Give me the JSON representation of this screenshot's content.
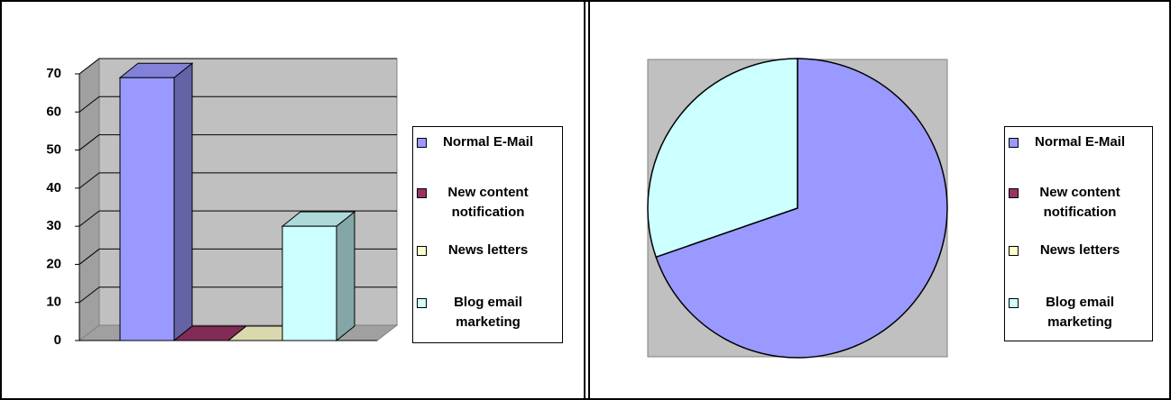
{
  "chart_data": [
    {
      "type": "bar",
      "categories": [
        "Normal E-Mail",
        "New content notification",
        "News letters",
        "Blog email marketing"
      ],
      "values": [
        69,
        0,
        0,
        30
      ],
      "colors": [
        "#9999ff",
        "#993366",
        "#ffffcc",
        "#ccffff"
      ],
      "ylim": [
        0,
        70
      ],
      "yticks": [
        0,
        10,
        20,
        30,
        40,
        50,
        60,
        70
      ],
      "grid": true
    },
    {
      "type": "pie",
      "categories": [
        "Normal E-Mail",
        "New content notification",
        "News letters",
        "Blog email marketing"
      ],
      "values": [
        69,
        0,
        0,
        30
      ],
      "colors": [
        "#9999ff",
        "#993366",
        "#ffffcc",
        "#ccffff"
      ]
    }
  ]
}
